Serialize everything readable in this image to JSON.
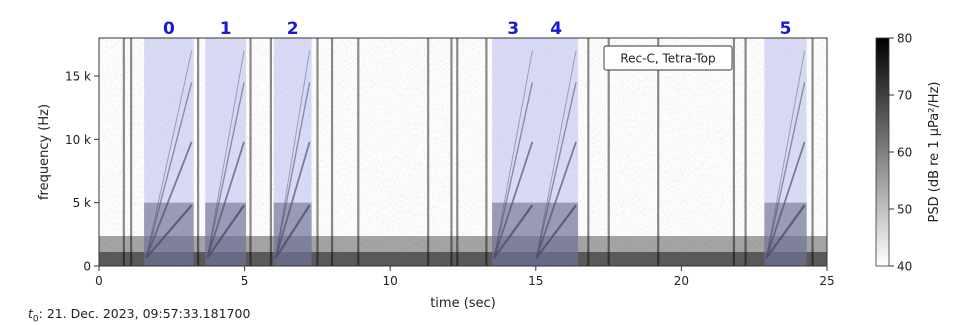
{
  "chart_data": {
    "type": "heatmap",
    "subtype": "spectrogram",
    "title": "",
    "xlabel": "time (sec)",
    "ylabel": "frequency (Hz)",
    "xlim": [
      0,
      25
    ],
    "ylim": [
      0,
      18000
    ],
    "x_ticks": [
      0,
      5,
      10,
      15,
      20,
      25
    ],
    "x_tick_labels": [
      "0",
      "5",
      "10",
      "15",
      "20",
      "25"
    ],
    "y_ticks": [
      0,
      5000,
      10000,
      15000
    ],
    "y_tick_labels": [
      "0",
      "5 k",
      "10 k",
      "15 k"
    ],
    "colorbar": {
      "label": "PSD (dB re 1 μPa²/Hz)",
      "min": 40,
      "max": 80,
      "ticks": [
        40,
        50,
        60,
        70,
        80
      ],
      "tick_labels": [
        "40",
        "50",
        "60",
        "70",
        "80"
      ],
      "colormap": "gray_r"
    },
    "legend_text": "Rec-C, Tetra-Top",
    "legend_placement": "top-right",
    "highlight_color": "#aab0ee",
    "segment_label_color": "#1a1ad6",
    "segments": [
      {
        "label": "0",
        "start": 1.55,
        "end": 3.25
      },
      {
        "label": "1",
        "start": 3.65,
        "end": 5.05
      },
      {
        "label": "2",
        "start": 6.0,
        "end": 7.3
      },
      {
        "label": "3",
        "start": 13.5,
        "end": 14.95
      },
      {
        "label": "4",
        "start": 14.95,
        "end": 16.45
      },
      {
        "label": "5",
        "start": 22.85,
        "end": 24.3
      }
    ],
    "broadband_clicks": [
      0.85,
      1.1,
      3.4,
      5.2,
      5.9,
      7.5,
      8.0,
      8.9,
      11.3,
      12.1,
      12.3,
      13.3,
      16.8,
      17.5,
      19.2,
      21.8,
      22.2,
      24.5
    ],
    "time_reference": {
      "symbol": "t",
      "subscript": "0",
      "text": ": 21. Dec. 2023, 09:57:33.181700"
    }
  }
}
